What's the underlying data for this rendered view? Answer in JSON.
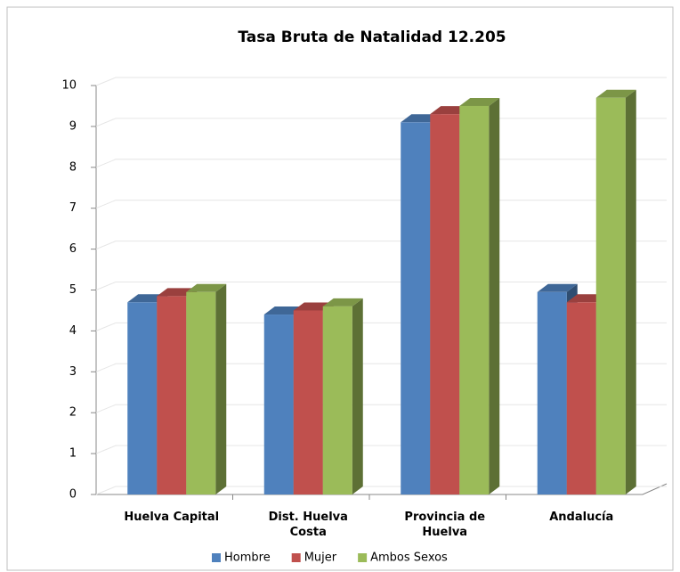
{
  "chart_data": {
    "type": "bar3d",
    "title": "Tasa Bruta de Natalidad 12.205",
    "categories": [
      "Huelva Capital",
      "Dist. Huelva Costa",
      "Provincia de Huelva",
      "Andalucía"
    ],
    "series": [
      {
        "name": "Hombre",
        "color": "#4f81bd",
        "values": [
          4.7,
          4.4,
          9.1,
          4.95
        ]
      },
      {
        "name": "Mujer",
        "color": "#c0504d",
        "values": [
          4.85,
          4.5,
          9.3,
          4.7
        ]
      },
      {
        "name": "Ambos Sexos",
        "color": "#9bbb59",
        "values": [
          4.95,
          4.6,
          9.5,
          9.7
        ]
      }
    ],
    "ylim": [
      0,
      10
    ],
    "yticks": [
      0,
      1,
      2,
      3,
      4,
      5,
      6,
      7,
      8,
      9,
      10
    ],
    "grid": true,
    "legend": "bottom"
  }
}
